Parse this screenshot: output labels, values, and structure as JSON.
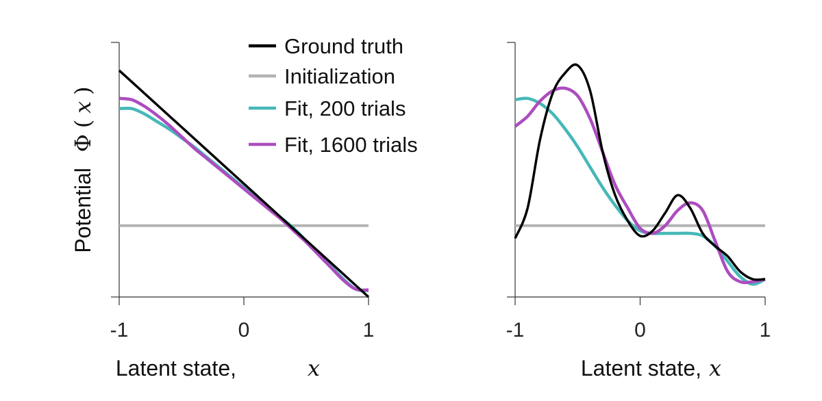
{
  "chart_data": [
    {
      "type": "line",
      "panel": "left",
      "xlabel": "Latent state,",
      "xlabel_var": "x",
      "ylabel": "Potential",
      "ylabel_func": "Φ",
      "ylabel_var": "x",
      "xlim": [
        -1,
        1
      ],
      "ylim": [
        0,
        1
      ],
      "xticks": [
        "-1",
        "0",
        "1"
      ],
      "series": [
        {
          "name": "Initialization",
          "color": "#b3b3b3",
          "x": [
            -1,
            1
          ],
          "y": [
            0.28,
            0.28
          ]
        },
        {
          "name": "Fit, 200 trials",
          "color": "#46b8b8",
          "x": [
            -1,
            -0.9,
            -0.8,
            -0.7,
            -0.6,
            -0.5,
            -0.4,
            -0.3,
            -0.2,
            -0.1,
            0,
            0.1,
            0.2,
            0.3,
            0.4,
            0.5,
            0.6,
            0.7,
            0.8,
            0.9,
            1
          ],
          "y": [
            0.74,
            0.74,
            0.72,
            0.69,
            0.66,
            0.625,
            0.59,
            0.55,
            0.51,
            0.47,
            0.43,
            0.39,
            0.35,
            0.31,
            0.27,
            0.22,
            0.17,
            0.12,
            0.07,
            0.03,
            0.025
          ]
        },
        {
          "name": "Fit, 1600 trials",
          "color": "#ac4dbf",
          "x": [
            -1,
            -0.9,
            -0.8,
            -0.7,
            -0.6,
            -0.5,
            -0.4,
            -0.3,
            -0.2,
            -0.1,
            0,
            0.1,
            0.2,
            0.3,
            0.4,
            0.5,
            0.6,
            0.7,
            0.8,
            0.9,
            1
          ],
          "y": [
            0.78,
            0.775,
            0.75,
            0.715,
            0.675,
            0.63,
            0.585,
            0.545,
            0.505,
            0.465,
            0.425,
            0.385,
            0.345,
            0.305,
            0.26,
            0.215,
            0.165,
            0.115,
            0.065,
            0.03,
            0.028
          ]
        },
        {
          "name": "Ground truth",
          "color": "#000000",
          "x": [
            -1,
            1
          ],
          "y": [
            0.89,
            0.0
          ]
        }
      ]
    },
    {
      "type": "line",
      "panel": "right",
      "xlabel": "Latent state,",
      "xlabel_var": "x",
      "xlim": [
        -1,
        1
      ],
      "ylim": [
        0,
        1
      ],
      "xticks": [
        "-1",
        "0",
        "1"
      ],
      "series": [
        {
          "name": "Initialization",
          "color": "#b3b3b3",
          "x": [
            -1,
            1
          ],
          "y": [
            0.28,
            0.28
          ]
        },
        {
          "name": "Fit, 200 trials",
          "color": "#46b8b8",
          "x": [
            -1,
            -0.9,
            -0.8,
            -0.7,
            -0.6,
            -0.5,
            -0.4,
            -0.3,
            -0.2,
            -0.1,
            0,
            0.1,
            0.2,
            0.3,
            0.4,
            0.5,
            0.6,
            0.7,
            0.8,
            0.9,
            1
          ],
          "y": [
            0.775,
            0.78,
            0.76,
            0.72,
            0.66,
            0.59,
            0.51,
            0.43,
            0.36,
            0.3,
            0.26,
            0.25,
            0.25,
            0.25,
            0.25,
            0.24,
            0.2,
            0.14,
            0.08,
            0.05,
            0.07
          ]
        },
        {
          "name": "Fit, 1600 trials",
          "color": "#ac4dbf",
          "x": [
            -1,
            -0.9,
            -0.8,
            -0.7,
            -0.6,
            -0.5,
            -0.4,
            -0.3,
            -0.2,
            -0.1,
            0,
            0.1,
            0.2,
            0.3,
            0.4,
            0.5,
            0.6,
            0.7,
            0.8,
            0.9,
            1
          ],
          "y": [
            0.67,
            0.71,
            0.77,
            0.81,
            0.82,
            0.79,
            0.7,
            0.57,
            0.44,
            0.35,
            0.27,
            0.25,
            0.28,
            0.34,
            0.37,
            0.34,
            0.22,
            0.1,
            0.06,
            0.06,
            0.07
          ]
        },
        {
          "name": "Ground truth",
          "color": "#000000",
          "x": [
            -1,
            -0.9,
            -0.8,
            -0.7,
            -0.6,
            -0.5,
            -0.4,
            -0.3,
            -0.2,
            -0.1,
            0,
            0.1,
            0.2,
            0.3,
            0.4,
            0.5,
            0.6,
            0.7,
            0.8,
            0.9,
            1
          ],
          "y": [
            0.23,
            0.35,
            0.62,
            0.8,
            0.88,
            0.91,
            0.81,
            0.57,
            0.4,
            0.3,
            0.24,
            0.26,
            0.33,
            0.4,
            0.35,
            0.25,
            0.2,
            0.16,
            0.1,
            0.07,
            0.07
          ]
        }
      ]
    }
  ],
  "legend": {
    "entries": [
      {
        "label": "Ground truth",
        "color": "#000000"
      },
      {
        "label": "Initialization",
        "color": "#b3b3b3"
      },
      {
        "label": "Fit, 200 trials",
        "color": "#46b8b8"
      },
      {
        "label": "Fit, 1600 trials",
        "color": "#ac4dbf"
      }
    ]
  }
}
